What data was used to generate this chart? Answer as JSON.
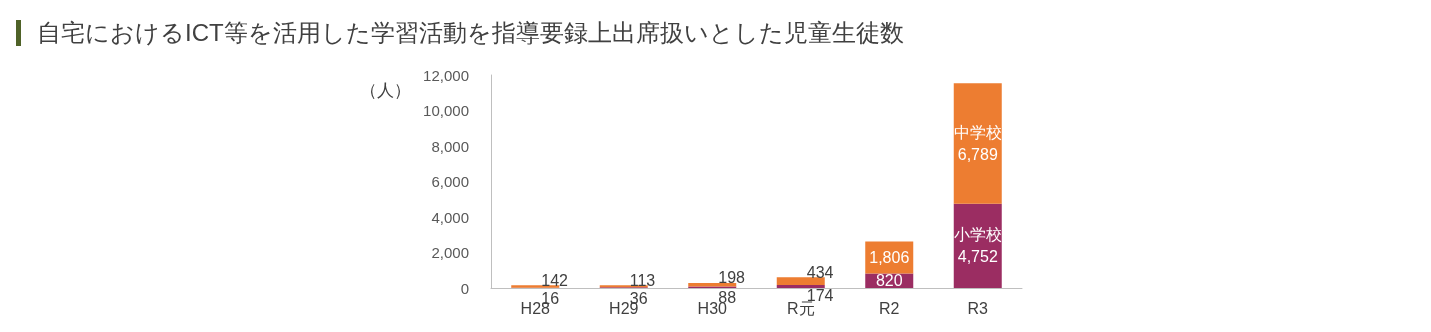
{
  "chart_data": {
    "type": "bar",
    "title": "自宅におけるICT等を活用した学習活動を指導要録上出席扱いとした児童生徒数",
    "ylabel": "（人）",
    "categories": [
      "H28",
      "H29",
      "H30",
      "R元",
      "R2",
      "R3"
    ],
    "stacked": true,
    "ylim": [
      0,
      12000
    ],
    "yticks": [
      {
        "value": 0,
        "label": "0"
      },
      {
        "value": 2000,
        "label": "2,000"
      },
      {
        "value": 4000,
        "label": "4,000"
      },
      {
        "value": 6000,
        "label": "6,000"
      },
      {
        "value": 8000,
        "label": "8,000"
      },
      {
        "value": 10000,
        "label": "10,000"
      },
      {
        "value": 12000,
        "label": "12,000"
      }
    ],
    "grid": false,
    "legend": false,
    "series": [
      {
        "name": "小学校",
        "color": "#9b2d62",
        "values": [
          16,
          36,
          88,
          174,
          820,
          4752
        ],
        "value_labels": [
          "16",
          "36",
          "88",
          "174",
          "820",
          "4,752"
        ]
      },
      {
        "name": "中学校",
        "color": "#ed7d31",
        "values": [
          142,
          113,
          198,
          434,
          1806,
          6789
        ],
        "value_labels": [
          "142",
          "113",
          "198",
          "434",
          "1,806",
          "6,789"
        ]
      }
    ]
  }
}
